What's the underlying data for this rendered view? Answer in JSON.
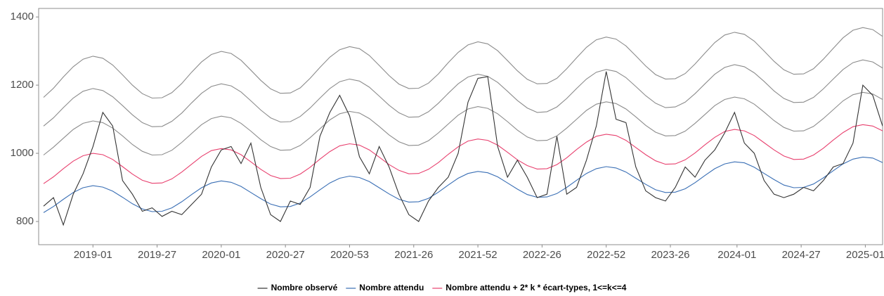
{
  "chart_data": {
    "type": "line",
    "x": [
      -20,
      -16,
      -12,
      -8,
      -4,
      0,
      4,
      8,
      12,
      16,
      20,
      24,
      28,
      32,
      36,
      40,
      44,
      48,
      52,
      56,
      60,
      64,
      68,
      72,
      76,
      80,
      84,
      88,
      92,
      96,
      100,
      104,
      108,
      112,
      116,
      120,
      124,
      128,
      132,
      136,
      140,
      144,
      148,
      152,
      156,
      160,
      164,
      168,
      172,
      176,
      180,
      184,
      188,
      192,
      196,
      200,
      204,
      208,
      212,
      216,
      220,
      224,
      228,
      232,
      236,
      240,
      244,
      248,
      252,
      256,
      260,
      264,
      268,
      272,
      276,
      280,
      284,
      288,
      292,
      296,
      300,
      304,
      308,
      312,
      316,
      320
    ],
    "xlim": [
      -22,
      320
    ],
    "xticks": [
      {
        "value": 0,
        "label": "2019-01"
      },
      {
        "value": 26,
        "label": "2019-27"
      },
      {
        "value": 52,
        "label": "2020-01"
      },
      {
        "value": 78,
        "label": "2020-27"
      },
      {
        "value": 104,
        "label": "2020-53"
      },
      {
        "value": 130,
        "label": "2021-26"
      },
      {
        "value": 156,
        "label": "2021-52"
      },
      {
        "value": 182,
        "label": "2022-26"
      },
      {
        "value": 208,
        "label": "2022-52"
      },
      {
        "value": 234,
        "label": "2023-26"
      },
      {
        "value": 261,
        "label": "2024-01"
      },
      {
        "value": 287,
        "label": "2024-27"
      },
      {
        "value": 313,
        "label": "2025-01"
      }
    ],
    "ylim": [
      732,
      1425
    ],
    "yticks": [
      800,
      1000,
      1200,
      1400
    ],
    "grid": false,
    "legend": "bottom",
    "series": [
      {
        "name": "Nombre observé",
        "color": "#333333",
        "values": [
          845,
          870,
          790,
          880,
          940,
          1020,
          1120,
          1080,
          920,
          880,
          830,
          840,
          815,
          830,
          820,
          850,
          880,
          960,
          1010,
          1020,
          970,
          1030,
          900,
          820,
          800,
          860,
          850,
          900,
          1050,
          1120,
          1170,
          1110,
          990,
          940,
          1020,
          960,
          880,
          820,
          800,
          860,
          900,
          930,
          1000,
          1150,
          1220,
          1225,
          1020,
          930,
          980,
          930,
          870,
          880,
          1050,
          880,
          900,
          980,
          1080,
          1240,
          1100,
          1090,
          960,
          890,
          870,
          860,
          900,
          960,
          930,
          980,
          1010,
          1060,
          1120,
          1030,
          1000,
          920,
          880,
          870,
          880,
          900,
          890,
          920,
          960,
          970,
          1030,
          1200,
          1170,
          1080
        ]
      },
      {
        "name": "Nombre attendu",
        "color": "#3a6fb5",
        "values": [
          826,
          844,
          865,
          885,
          899,
          905,
          901,
          889,
          871,
          852,
          837,
          829,
          830,
          840,
          858,
          879,
          899,
          913,
          919,
          915,
          903,
          885,
          867,
          851,
          843,
          844,
          854,
          872,
          893,
          913,
          927,
          933,
          929,
          917,
          899,
          881,
          865,
          857,
          858,
          868,
          886,
          907,
          927,
          941,
          947,
          943,
          931,
          913,
          895,
          879,
          871,
          872,
          882,
          900,
          921,
          941,
          955,
          961,
          957,
          945,
          927,
          909,
          893,
          885,
          886,
          896,
          914,
          935,
          955,
          969,
          975,
          972,
          959,
          941,
          923,
          907,
          899,
          900,
          910,
          928,
          949,
          969,
          983,
          989,
          986,
          973
        ]
      },
      {
        "name": "Nombre attendu + 2* k * écart-types, 1<=k<=4",
        "color": "#e8416f",
        "values": [
          911,
          931,
          955,
          977,
          993,
          1000,
          996,
          982,
          961,
          939,
          921,
          912,
          913,
          925,
          945,
          968,
          991,
          1008,
          1014,
          1010,
          996,
          975,
          953,
          935,
          926,
          927,
          939,
          959,
          983,
          1005,
          1022,
          1028,
          1024,
          1010,
          989,
          967,
          950,
          940,
          941,
          953,
          973,
          997,
          1019,
          1036,
          1042,
          1038,
          1024,
          1003,
          981,
          964,
          954,
          955,
          967,
          987,
          1011,
          1033,
          1050,
          1056,
          1052,
          1038,
          1017,
          996,
          978,
          968,
          969,
          981,
          1001,
          1025,
          1047,
          1064,
          1070,
          1066,
          1052,
          1031,
          1010,
          992,
          982,
          983,
          995,
          1015,
          1039,
          1061,
          1078,
          1084,
          1080,
          1066
        ]
      },
      {
        "color": "#8c8c8c",
        "values": [
          995,
          1018,
          1044,
          1070,
          1088,
          1095,
          1090,
          1074,
          1051,
          1026,
          1006,
          995,
          996,
          1009,
          1032,
          1058,
          1084,
          1102,
          1109,
          1104,
          1088,
          1065,
          1040,
          1020,
          1009,
          1010,
          1023,
          1046,
          1072,
          1098,
          1116,
          1123,
          1118,
          1102,
          1079,
          1054,
          1034,
          1023,
          1024,
          1037,
          1060,
          1086,
          1112,
          1130,
          1137,
          1132,
          1116,
          1093,
          1068,
          1048,
          1037,
          1038,
          1051,
          1074,
          1100,
          1126,
          1144,
          1151,
          1146,
          1130,
          1107,
          1082,
          1062,
          1051,
          1052,
          1065,
          1088,
          1114,
          1140,
          1158,
          1165,
          1160,
          1144,
          1121,
          1096,
          1076,
          1065,
          1066,
          1079,
          1102,
          1128,
          1154,
          1172,
          1179,
          1174,
          1158
        ]
      },
      {
        "color": "#8c8c8c",
        "values": [
          1080,
          1104,
          1134,
          1162,
          1182,
          1190,
          1184,
          1166,
          1140,
          1113,
          1090,
          1078,
          1079,
          1094,
          1118,
          1148,
          1176,
          1196,
          1204,
          1198,
          1180,
          1154,
          1127,
          1104,
          1092,
          1093,
          1108,
          1133,
          1162,
          1190,
          1210,
          1218,
          1212,
          1194,
          1168,
          1141,
          1119,
          1106,
          1107,
          1122,
          1147,
          1176,
          1204,
          1224,
          1232,
          1226,
          1208,
          1182,
          1155,
          1133,
          1120,
          1122,
          1136,
          1161,
          1190,
          1218,
          1238,
          1246,
          1240,
          1222,
          1196,
          1169,
          1147,
          1134,
          1136,
          1150,
          1175,
          1204,
          1232,
          1252,
          1260,
          1254,
          1236,
          1211,
          1183,
          1161,
          1149,
          1150,
          1164,
          1189,
          1218,
          1246,
          1266,
          1274,
          1268,
          1250
        ]
      },
      {
        "color": "#8c8c8c",
        "values": [
          1164,
          1191,
          1224,
          1254,
          1276,
          1285,
          1279,
          1259,
          1230,
          1200,
          1175,
          1162,
          1163,
          1178,
          1205,
          1238,
          1268,
          1290,
          1299,
          1293,
          1273,
          1244,
          1214,
          1189,
          1176,
          1177,
          1192,
          1220,
          1252,
          1282,
          1304,
          1313,
          1307,
          1287,
          1258,
          1228,
          1203,
          1190,
          1191,
          1206,
          1233,
          1266,
          1296,
          1318,
          1327,
          1321,
          1301,
          1272,
          1242,
          1217,
          1204,
          1205,
          1220,
          1248,
          1280,
          1311,
          1333,
          1341,
          1335,
          1315,
          1286,
          1256,
          1231,
          1218,
          1219,
          1234,
          1262,
          1294,
          1325,
          1347,
          1355,
          1349,
          1329,
          1300,
          1270,
          1245,
          1232,
          1233,
          1248,
          1276,
          1308,
          1339,
          1361,
          1369,
          1363,
          1343
        ]
      }
    ]
  }
}
